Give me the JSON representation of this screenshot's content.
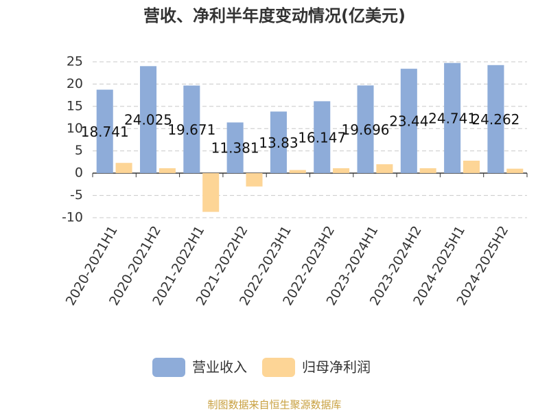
{
  "chart_data": {
    "type": "bar",
    "title": "营收、净利半年度变动情况(亿美元)",
    "categories": [
      "2020-2021H1",
      "2020-2021H2",
      "2021-2022H1",
      "2021-2022H2",
      "2022-2023H1",
      "2022-2023H2",
      "2023-2024H1",
      "2023-2024H2",
      "2024-2025H1",
      "2024-2025H2"
    ],
    "series": [
      {
        "name": "营业收入",
        "color": "#8eacd9",
        "values": [
          18.741,
          24.025,
          19.671,
          11.381,
          13.83,
          16.147,
          19.696,
          23.44,
          24.741,
          24.262
        ]
      },
      {
        "name": "归母净利润",
        "color": "#fdd596",
        "values": [
          2.3,
          1.1,
          -8.7,
          -3.0,
          0.7,
          1.1,
          2.0,
          1.1,
          2.8,
          1.0
        ]
      }
    ],
    "ylim": [
      -10,
      25
    ],
    "yticks": [
      -10,
      -5,
      0,
      5,
      10,
      15,
      20,
      25
    ],
    "grid": true,
    "source": "制图数据来自恒生聚源数据库"
  }
}
